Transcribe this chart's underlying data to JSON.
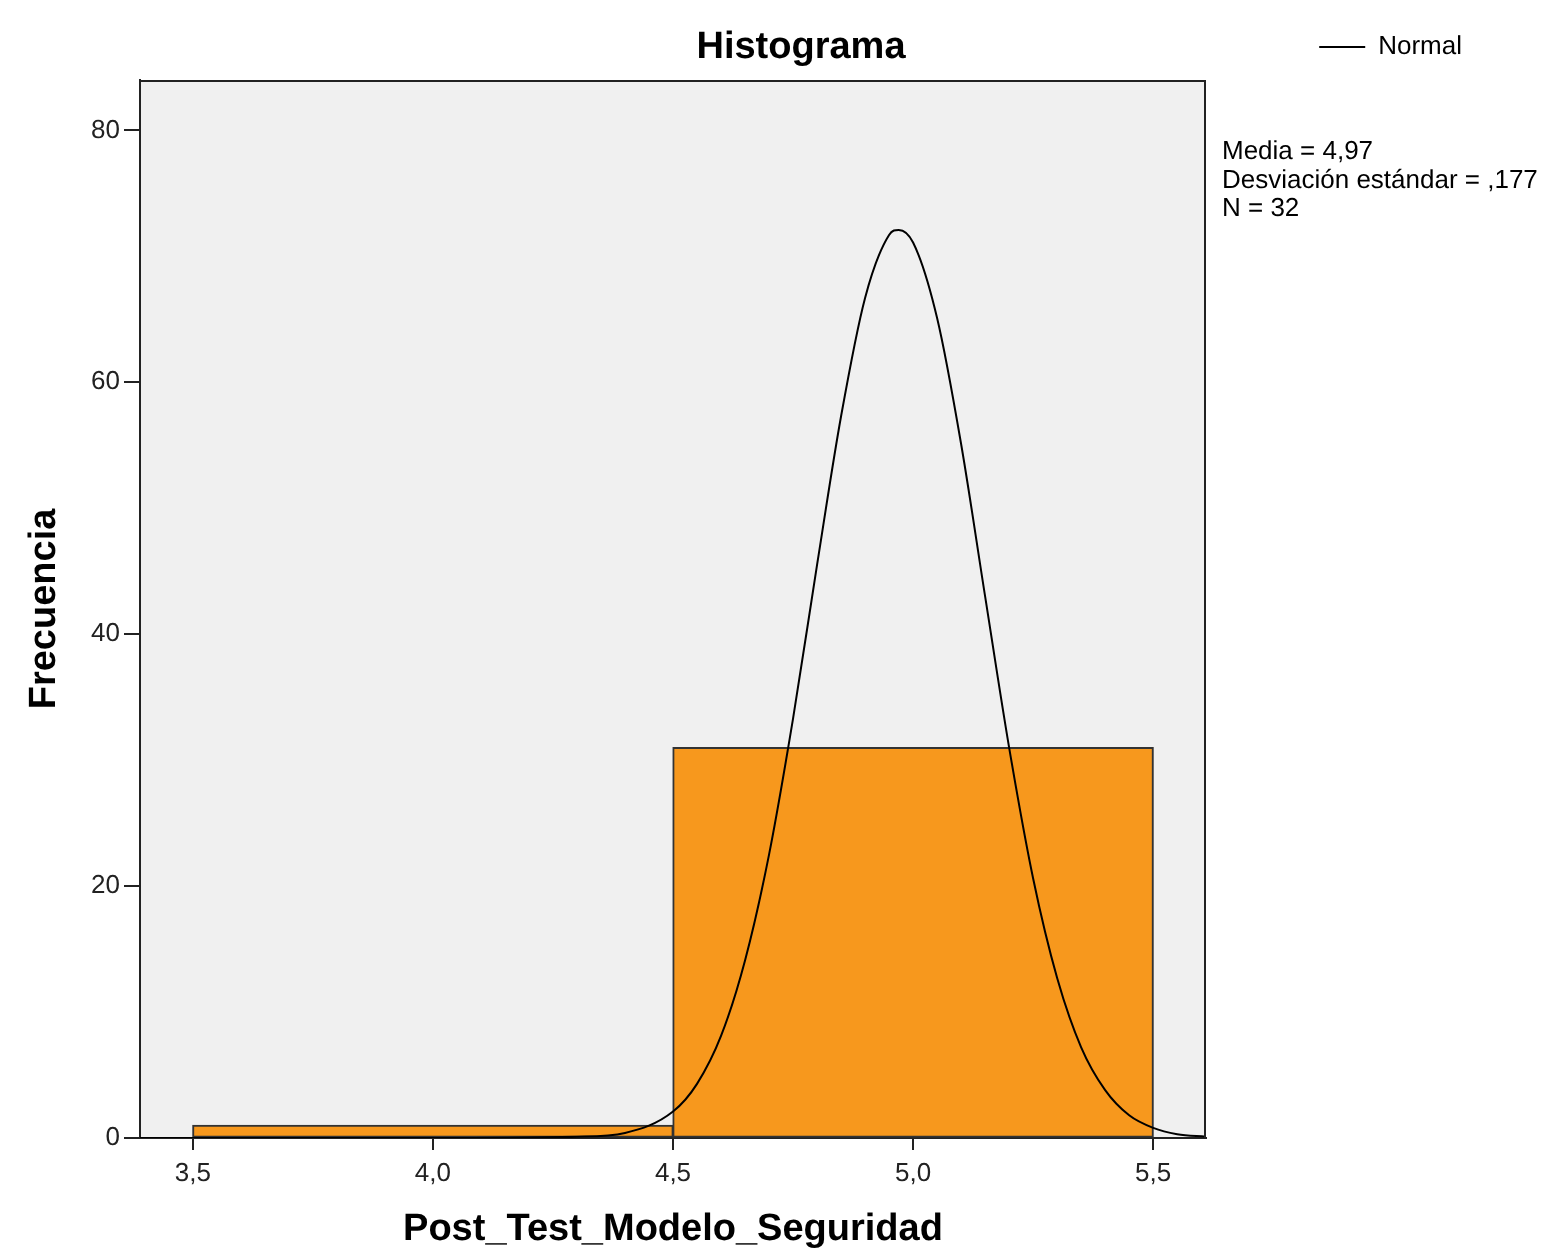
{
  "chart_data": {
    "type": "histogram",
    "title": "Histograma",
    "xlabel": "Post_Test_Modelo_Seguridad",
    "ylabel": "Frecuencia",
    "bins": [
      3.5,
      4.5,
      5.5
    ],
    "series": [
      {
        "color": "#f7981d",
        "values": [
          1,
          31
        ]
      },
      {
        "type": "line",
        "name": "Normal",
        "color": "#000000",
        "x": [
          3.39,
          4.0,
          4.3,
          4.4,
          4.5,
          4.55,
          4.6,
          4.65,
          4.7,
          4.75,
          4.8,
          4.85,
          4.9,
          4.95,
          4.97,
          5.0,
          5.05,
          5.1,
          5.15,
          5.2,
          5.25,
          5.3,
          5.35,
          5.4,
          5.45,
          5.5,
          5.55,
          5.61
        ],
        "values": [
          0,
          0,
          0.1,
          0.4,
          2.1,
          4.3,
          8.1,
          14.1,
          22.5,
          33.3,
          45.5,
          57.3,
          66.7,
          71.7,
          72.1,
          71.1,
          65.1,
          55.1,
          43,
          31,
          20.6,
          12.7,
          7.2,
          3.8,
          1.8,
          0.8,
          0.3,
          0.1
        ]
      }
    ],
    "xlim": [
      3.39,
      5.61
    ],
    "xticks": [
      {
        "value": 3.5,
        "label": "3,5"
      },
      {
        "value": 4.0,
        "label": "4,0"
      },
      {
        "value": 4.5,
        "label": "4,5"
      },
      {
        "value": 5.0,
        "label": "5,0"
      },
      {
        "value": 5.5,
        "label": "5,5"
      }
    ],
    "ylim": [
      0,
      84
    ],
    "yticks": [
      0,
      20,
      40,
      60,
      80
    ],
    "legend": "top right",
    "annotations": [
      "Media = 4,97",
      "Desviación estándar = ,177",
      "N = 32"
    ]
  }
}
